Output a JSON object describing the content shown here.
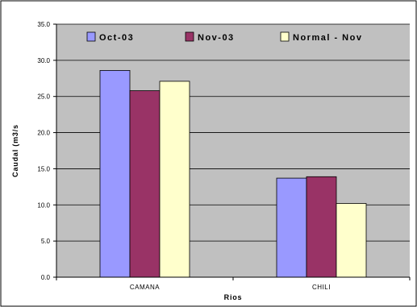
{
  "chart_data": {
    "type": "bar",
    "categories": [
      "CAMANA",
      "CHILI"
    ],
    "series": [
      {
        "name": "Oct-03",
        "values": [
          28.6,
          13.7
        ],
        "color": "#9999FF"
      },
      {
        "name": "Nov-03",
        "values": [
          25.8,
          13.9
        ],
        "color": "#993366"
      },
      {
        "name": "Normal - Nov",
        "values": [
          27.1,
          10.2
        ],
        "color": "#FFFFCC"
      }
    ],
    "xlabel": "Rios",
    "ylabel": "Caudal (m3/s",
    "ylim": [
      0,
      35
    ],
    "yticks": [
      "0.0",
      "5.0",
      "10.0",
      "15.0",
      "20.0",
      "25.0",
      "30.0",
      "35.0"
    ],
    "grid": true,
    "legend_position": "top",
    "plot_background": "#C0C0C0",
    "outer_background": "#FFFFFF"
  }
}
